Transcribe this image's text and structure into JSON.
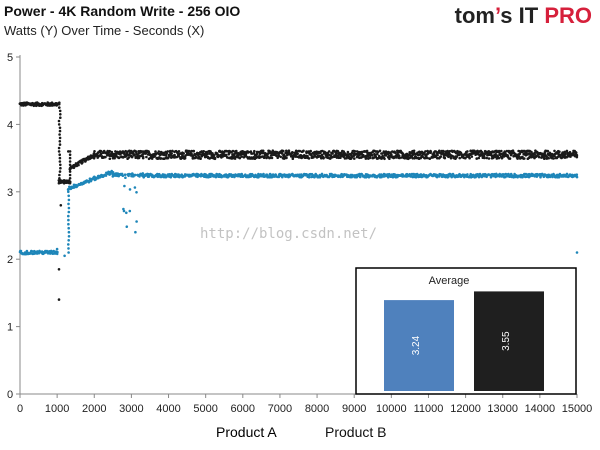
{
  "header": {
    "title": "Power - 4K Random Write - 256 OIO",
    "subtitle": "Watts (Y) Over Time - Seconds (X)",
    "logo_main": "tom",
    "logo_apos": "’",
    "logo_s": "s",
    "logo_it": "IT ",
    "logo_pro": "PRO"
  },
  "watermark": "http://blog.csdn.net/",
  "colors": {
    "product_a": "#1e86b9",
    "product_b": "#1a1a1a",
    "inset_a": "#4f81bd",
    "inset_b": "#1f1f1f"
  },
  "chart_data": [
    {
      "type": "scatter",
      "title": "Power - 4K Random Write - 256 OIO",
      "subtitle": "Watts (Y) Over Time - Seconds (X)",
      "xlim": [
        0,
        15000
      ],
      "ylim": [
        0,
        5
      ],
      "xticks": [
        0,
        1000,
        2000,
        3000,
        4000,
        5000,
        6000,
        7000,
        8000,
        9000,
        10000,
        11000,
        12000,
        13000,
        14000,
        15000
      ],
      "yticks": [
        0,
        1,
        2,
        3,
        4,
        5
      ],
      "grid": false,
      "legend_placement": "bottom",
      "series": [
        {
          "name": "Product A",
          "color": "#1e86b9",
          "segments": [
            {
              "x_range": [
                0,
                1000
              ],
              "level": 2.1
            },
            {
              "x_range": [
                1300,
                2500
              ],
              "level_start": 3.05,
              "level_end": 3.3
            },
            {
              "x_range": [
                2500,
                3300
              ],
              "level": 3.25,
              "dip_min": 2.3
            },
            {
              "x_range": [
                3300,
                15000
              ],
              "level": 3.24
            }
          ],
          "outliers": [
            [
              1000,
              2.15
            ],
            [
              1200,
              2.05
            ],
            [
              15000,
              2.1
            ]
          ]
        },
        {
          "name": "Product B",
          "color": "#1a1a1a",
          "segments": [
            {
              "x_range": [
                0,
                1050
              ],
              "level": 4.3
            },
            {
              "x_range": [
                1050,
                1350
              ],
              "level": 3.15
            },
            {
              "x_range": [
                1350,
                2000
              ],
              "level_start": 3.35,
              "level_end": 3.55
            },
            {
              "x_range": [
                2000,
                15000
              ],
              "level": 3.55,
              "spread": 0.12
            }
          ],
          "outliers": [
            [
              1050,
              1.4
            ],
            [
              1050,
              1.85
            ],
            [
              1100,
              2.8
            ],
            [
              1300,
              3.6
            ]
          ]
        }
      ]
    },
    {
      "type": "bar",
      "title": "Average",
      "categories": [
        "Product A",
        "Product B"
      ],
      "values": [
        3.24,
        3.55
      ],
      "data_labels": [
        "3.24",
        "3.55"
      ],
      "ylim": [
        0,
        3.6
      ],
      "colors": [
        "#4f81bd",
        "#1f1f1f"
      ]
    }
  ]
}
